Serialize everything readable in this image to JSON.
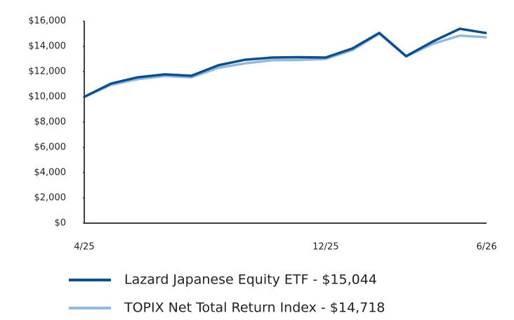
{
  "chart_data": {
    "type": "line",
    "categories": [
      "4/25",
      null,
      null,
      null,
      null,
      null,
      null,
      null,
      null,
      "12/25",
      null,
      null,
      null,
      null,
      null,
      "6/26"
    ],
    "series": [
      {
        "name": "Lazard Japanese Equity ETF - $15,044",
        "color": "#0b4f8e",
        "values": [
          10000,
          11050,
          11550,
          11780,
          11670,
          12500,
          12940,
          13110,
          13140,
          13110,
          13830,
          15060,
          13220,
          14390,
          15390,
          15044
        ]
      },
      {
        "name": "TOPIX Net Total Return Index - $14,718",
        "color": "#95b9dc",
        "values": [
          10000,
          10950,
          11400,
          11650,
          11550,
          12300,
          12650,
          12900,
          12920,
          13000,
          13700,
          15000,
          13200,
          14200,
          14850,
          14718
        ]
      }
    ],
    "ylim": [
      0,
      16000
    ],
    "yticks": [
      {
        "value": 0,
        "label": "$0"
      },
      {
        "value": 2000,
        "label": "$2,000"
      },
      {
        "value": 4000,
        "label": "$4,000"
      },
      {
        "value": 6000,
        "label": "$6,000"
      },
      {
        "value": 8000,
        "label": "$8,000"
      },
      {
        "value": 10000,
        "label": "$10,000"
      },
      {
        "value": 12000,
        "label": "$12,000"
      },
      {
        "value": 14000,
        "label": "$14,000"
      },
      {
        "value": 16000,
        "label": "$16,000"
      }
    ],
    "grid": false
  }
}
